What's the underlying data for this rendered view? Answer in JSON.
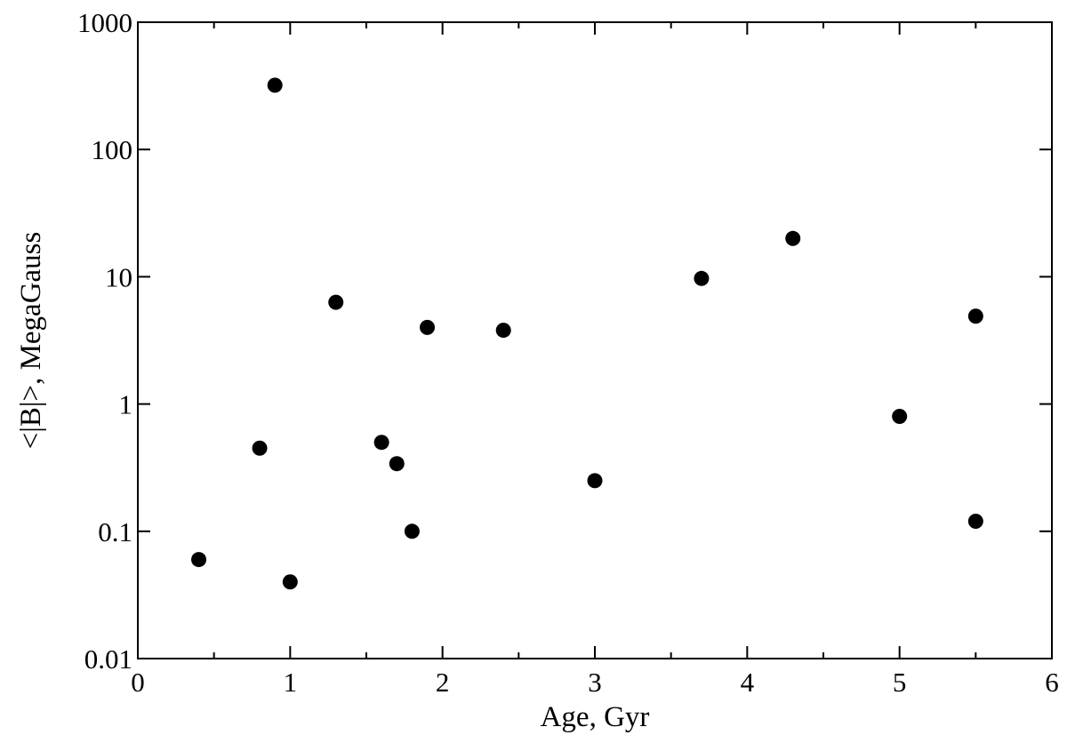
{
  "chart_data": {
    "type": "scatter",
    "xlabel": "Age, Gyr",
    "ylabel": "<|B|>, MegaGauss",
    "xlim": [
      0,
      6
    ],
    "ylim": [
      0.01,
      1000
    ],
    "yscale": "log",
    "x_ticks": [
      0,
      1,
      2,
      3,
      4,
      5,
      6
    ],
    "x_tick_labels": [
      "0",
      "1",
      "2",
      "3",
      "4",
      "5",
      "6"
    ],
    "y_ticks": [
      0.01,
      0.1,
      1,
      10,
      100,
      1000
    ],
    "y_tick_labels": [
      "0.01",
      "0.1",
      "1",
      "10",
      "100",
      "1000"
    ],
    "grid": false,
    "legend": "none",
    "marker_color": "#000000",
    "series": [
      {
        "points": [
          {
            "x": 0.4,
            "y": 0.06
          },
          {
            "x": 0.8,
            "y": 0.45
          },
          {
            "x": 0.9,
            "y": 320
          },
          {
            "x": 1.0,
            "y": 0.04
          },
          {
            "x": 1.3,
            "y": 6.3
          },
          {
            "x": 1.6,
            "y": 0.5
          },
          {
            "x": 1.7,
            "y": 0.34
          },
          {
            "x": 1.8,
            "y": 0.1
          },
          {
            "x": 1.9,
            "y": 4.0
          },
          {
            "x": 2.4,
            "y": 3.8
          },
          {
            "x": 3.0,
            "y": 0.25
          },
          {
            "x": 3.7,
            "y": 9.7
          },
          {
            "x": 4.3,
            "y": 20
          },
          {
            "x": 5.0,
            "y": 0.8
          },
          {
            "x": 5.5,
            "y": 4.9
          },
          {
            "x": 5.5,
            "y": 0.12
          }
        ]
      }
    ]
  }
}
